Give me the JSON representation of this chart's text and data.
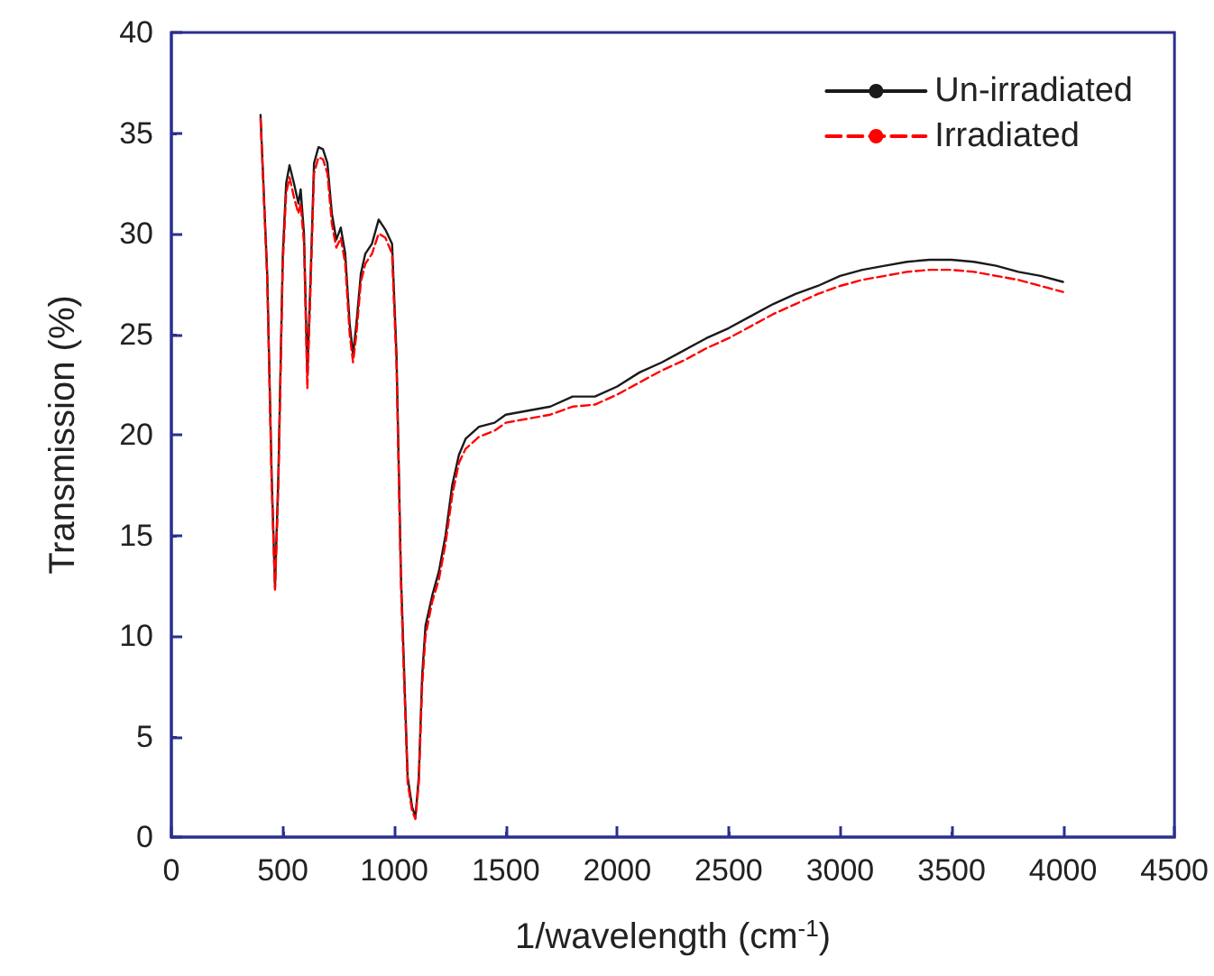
{
  "chart_data": {
    "type": "line",
    "xlabel": "1/wavelength (cm$^{-1}$)",
    "ylabel": "Transmission (%)",
    "xlim": [
      0,
      4500
    ],
    "xticks": [
      0,
      500,
      1000,
      1500,
      2000,
      2500,
      3000,
      3500,
      4000,
      4500
    ],
    "ylim": [
      0,
      40
    ],
    "yticks": [
      0,
      5,
      10,
      15,
      20,
      25,
      30,
      35,
      40
    ],
    "grid": false,
    "legend": "top right",
    "marker": "none",
    "x": [
      400,
      430,
      450,
      465,
      480,
      500,
      515,
      530,
      550,
      570,
      580,
      595,
      610,
      625,
      640,
      660,
      680,
      700,
      720,
      740,
      760,
      780,
      800,
      815,
      830,
      850,
      870,
      900,
      930,
      960,
      990,
      1010,
      1030,
      1045,
      1060,
      1080,
      1095,
      1110,
      1125,
      1140,
      1170,
      1200,
      1230,
      1260,
      1290,
      1320,
      1380,
      1450,
      1500,
      1600,
      1700,
      1800,
      1900,
      2000,
      2100,
      2200,
      2300,
      2400,
      2500,
      2600,
      2700,
      2800,
      2900,
      3000,
      3100,
      3200,
      3300,
      3400,
      3500,
      3600,
      3700,
      3800,
      3900,
      4000
    ],
    "series": [
      {
        "name": "Un-irradiated",
        "color": "#1a1a1a",
        "line_style": "solid",
        "values": [
          35.9,
          28,
          18,
          12.4,
          18,
          29,
          32.5,
          33.4,
          32.5,
          31.5,
          32.2,
          30,
          23,
          28,
          33.5,
          34.3,
          34.2,
          33.5,
          31,
          29.7,
          30.3,
          29,
          25.5,
          24,
          25.5,
          28,
          29,
          29.5,
          30.7,
          30.2,
          29.5,
          24,
          13,
          8,
          3,
          1.5,
          1,
          3,
          8,
          10.5,
          12,
          13.2,
          15,
          17.5,
          19,
          19.8,
          20.4,
          20.6,
          21,
          21.2,
          21.4,
          21.9,
          21.9,
          22.4,
          23.1,
          23.6,
          24.2,
          24.8,
          25.3,
          25.9,
          26.5,
          27,
          27.4,
          27.9,
          28.2,
          28.4,
          28.6,
          28.7,
          28.7,
          28.6,
          28.4,
          28.1,
          27.9,
          27.6
        ]
      },
      {
        "name": "Irradiated",
        "color": "#ff0000",
        "line_style": "dashed",
        "values": [
          35.7,
          27.8,
          17.5,
          12.3,
          17.5,
          28.5,
          32,
          32.8,
          31.8,
          31,
          31.5,
          29.5,
          22.3,
          27.5,
          33,
          33.8,
          33.7,
          33,
          30.5,
          29.3,
          29.8,
          28.5,
          25,
          23.6,
          25,
          27.6,
          28.5,
          29,
          30,
          29.8,
          29,
          23.5,
          12.5,
          7.5,
          2.7,
          1.3,
          0.9,
          2.7,
          7.5,
          10,
          11.7,
          12.8,
          14.6,
          17,
          18.6,
          19.3,
          19.9,
          20.2,
          20.6,
          20.8,
          21,
          21.4,
          21.5,
          22,
          22.6,
          23.2,
          23.7,
          24.3,
          24.8,
          25.4,
          26,
          26.5,
          27,
          27.4,
          27.7,
          27.9,
          28.1,
          28.2,
          28.2,
          28.1,
          27.9,
          27.7,
          27.4,
          27.1
        ]
      }
    ]
  }
}
